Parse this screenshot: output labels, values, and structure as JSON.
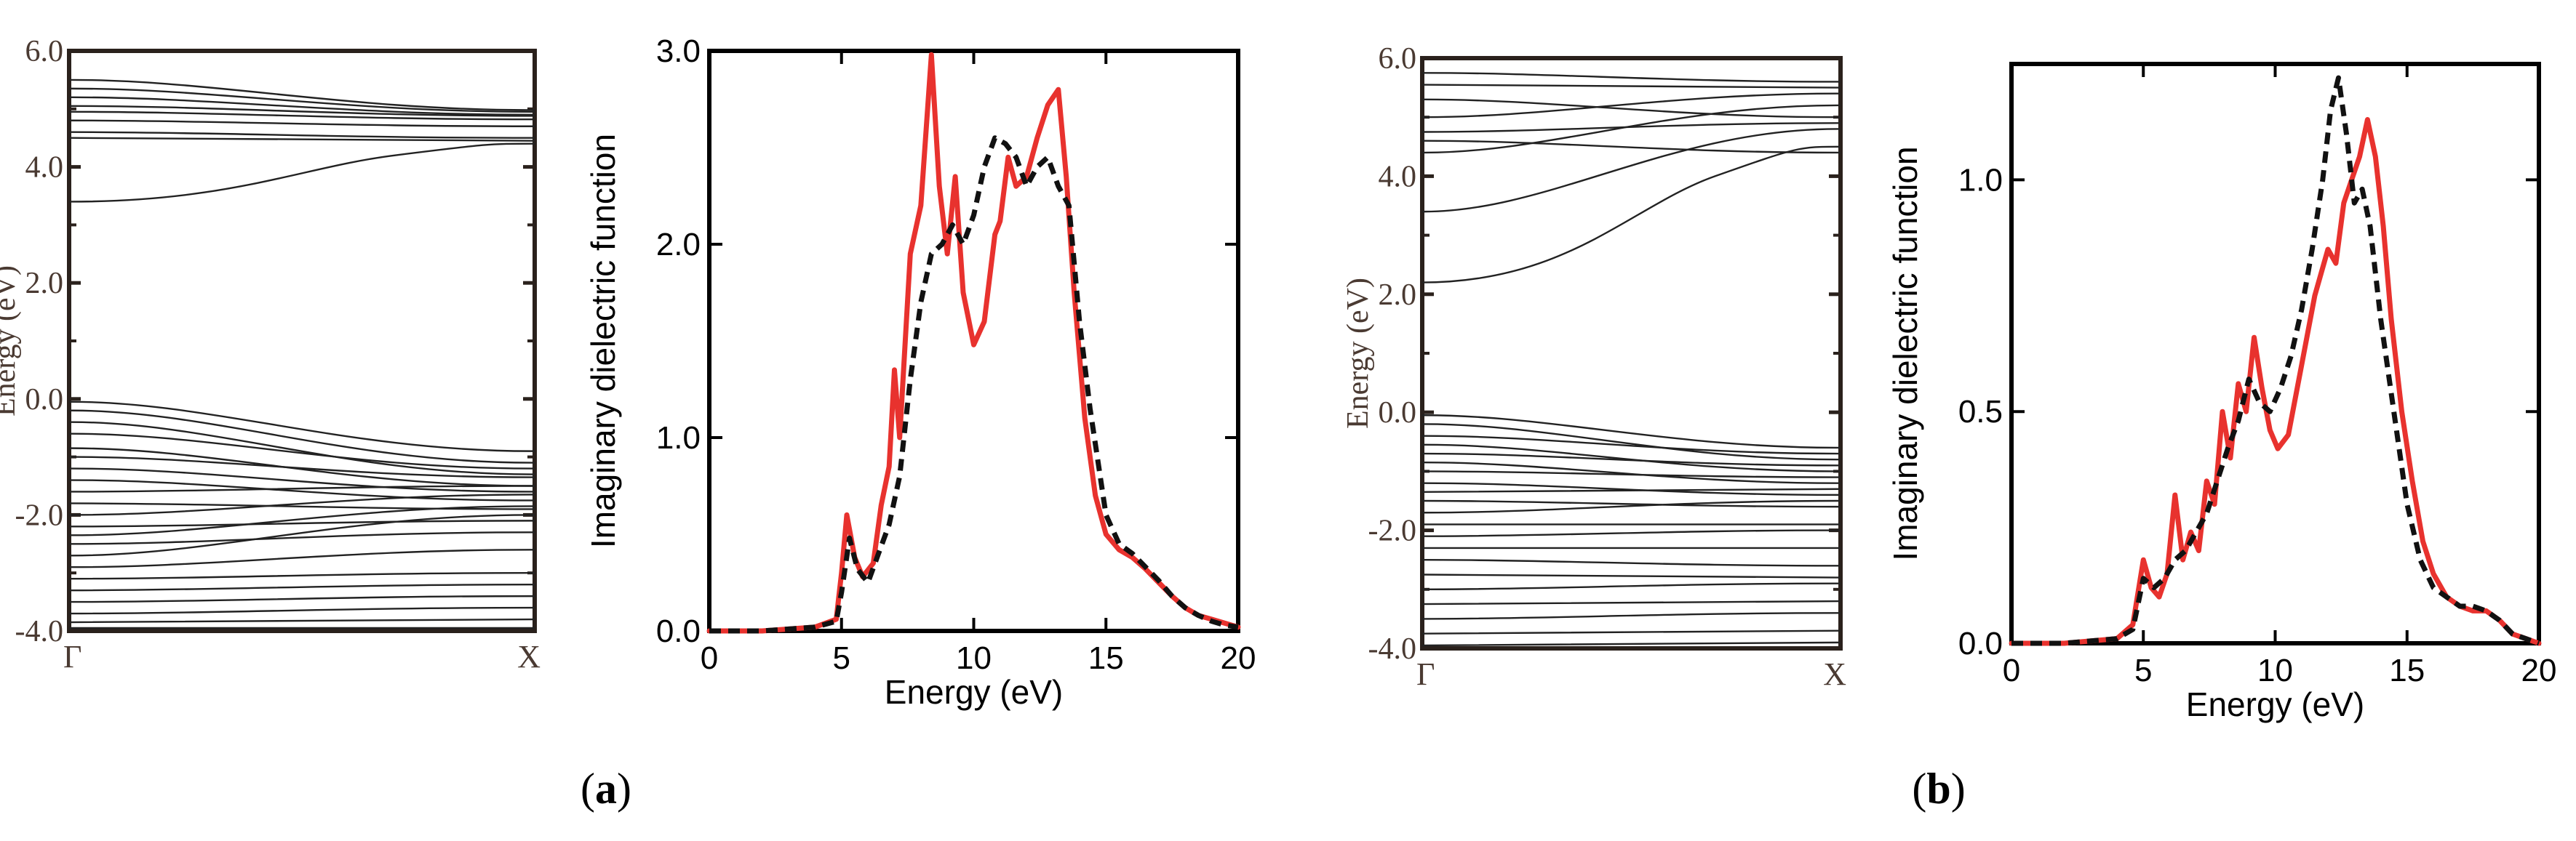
{
  "figure": {
    "panels": [
      {
        "label": "a"
      },
      {
        "label": "b"
      }
    ],
    "colors": {
      "red_series": "#e8322e",
      "black_series": "#111111",
      "band_lines": "#222222",
      "band_text": "#4a3a32"
    }
  },
  "chart_data": [
    {
      "id": "band_a",
      "type": "line",
      "title": "",
      "xlabel": "",
      "ylabel": "Energy (eV)",
      "ylim": [
        -4.0,
        6.0
      ],
      "yticks": [
        -4.0,
        -2.0,
        0.0,
        2.0,
        4.0,
        6.0
      ],
      "ytick_labels": [
        "-4.0",
        "-2.0",
        "0.0",
        "2.0",
        "4.0",
        "6.0"
      ],
      "kpoints": [
        "Γ",
        "X"
      ],
      "conduction_bands": [
        {
          "gamma": 3.4,
          "x": 4.4,
          "mid": 4.0
        },
        {
          "gamma": 4.5,
          "x": 4.45
        },
        {
          "gamma": 4.6,
          "x": 4.5
        },
        {
          "gamma": 4.8,
          "x": 4.7
        },
        {
          "gamma": 4.95,
          "x": 4.82
        },
        {
          "gamma": 5.05,
          "x": 4.88
        },
        {
          "gamma": 5.2,
          "x": 4.9
        },
        {
          "gamma": 5.35,
          "x": 4.95
        },
        {
          "gamma": 5.5,
          "x": 4.98
        }
      ],
      "valence_bands": [
        {
          "gamma": -0.05,
          "x": -0.9
        },
        {
          "gamma": -0.2,
          "x": -1.1
        },
        {
          "gamma": -0.4,
          "x": -1.3
        },
        {
          "gamma": -0.6,
          "x": -1.2
        },
        {
          "gamma": -0.85,
          "x": -1.5
        },
        {
          "gamma": -1.0,
          "x": -1.35
        },
        {
          "gamma": -1.2,
          "x": -1.6
        },
        {
          "gamma": -1.4,
          "x": -1.75
        },
        {
          "gamma": -1.6,
          "x": -1.5
        },
        {
          "gamma": -1.8,
          "x": -1.9
        },
        {
          "gamma": -2.0,
          "x": -1.65
        },
        {
          "gamma": -2.2,
          "x": -2.1
        },
        {
          "gamma": -2.35,
          "x": -1.85
        },
        {
          "gamma": -2.5,
          "x": -2.3
        },
        {
          "gamma": -2.7,
          "x": -2.0
        },
        {
          "gamma": -2.9,
          "x": -2.6
        },
        {
          "gamma": -3.1,
          "x": -3.0
        },
        {
          "gamma": -3.3,
          "x": -3.2
        },
        {
          "gamma": -3.5,
          "x": -3.4
        },
        {
          "gamma": -3.7,
          "x": -3.6
        },
        {
          "gamma": -3.85,
          "x": -3.8
        },
        {
          "gamma": -3.95,
          "x": -3.95
        }
      ]
    },
    {
      "id": "eps_a",
      "type": "line",
      "title": "",
      "xlabel": "Energy (eV)",
      "ylabel": "Imaginary dielectric function",
      "xlim": [
        0,
        20
      ],
      "ylim": [
        0,
        3.0
      ],
      "xticks": [
        0,
        5,
        10,
        15,
        20
      ],
      "yticks": [
        0.0,
        1.0,
        2.0,
        3.0
      ],
      "ytick_labels": [
        "0.0",
        "1.0",
        "2.0",
        "3.0"
      ],
      "series": [
        {
          "name": "red",
          "color": "#e8322e",
          "dash": "solid",
          "x": [
            0,
            2,
            4,
            4.8,
            5.0,
            5.2,
            5.5,
            5.8,
            6.2,
            6.5,
            6.8,
            7.0,
            7.2,
            7.6,
            8.0,
            8.4,
            8.7,
            9.0,
            9.3,
            9.6,
            10.0,
            10.4,
            10.8,
            11.0,
            11.3,
            11.6,
            12.0,
            12.4,
            12.8,
            13.2,
            13.5,
            13.8,
            14.2,
            14.6,
            15.0,
            15.5,
            16.0,
            16.5,
            17.0,
            17.5,
            18.0,
            18.5,
            19.0,
            19.5,
            20.0
          ],
          "values": [
            0,
            0,
            0.02,
            0.06,
            0.3,
            0.6,
            0.38,
            0.28,
            0.35,
            0.65,
            0.85,
            1.35,
            1.0,
            1.95,
            2.2,
            2.98,
            2.3,
            1.95,
            2.35,
            1.75,
            1.48,
            1.6,
            2.05,
            2.12,
            2.45,
            2.3,
            2.35,
            2.55,
            2.72,
            2.8,
            2.35,
            1.75,
            1.1,
            0.7,
            0.5,
            0.42,
            0.38,
            0.32,
            0.25,
            0.18,
            0.12,
            0.08,
            0.06,
            0.04,
            0.02
          ]
        },
        {
          "name": "black",
          "color": "#111111",
          "dash": "dashed",
          "x": [
            0,
            2,
            4,
            4.8,
            5.0,
            5.3,
            5.6,
            6.0,
            6.4,
            6.8,
            7.2,
            7.6,
            8.0,
            8.4,
            8.8,
            9.2,
            9.6,
            10.0,
            10.4,
            10.8,
            11.2,
            11.6,
            12.0,
            12.4,
            12.8,
            13.2,
            13.6,
            14.0,
            14.4,
            15.0,
            15.5,
            16.0,
            16.5,
            17.0,
            17.5,
            18.0,
            18.5,
            19.0,
            19.5,
            20.0
          ],
          "values": [
            0,
            0,
            0.02,
            0.05,
            0.2,
            0.48,
            0.32,
            0.25,
            0.4,
            0.55,
            0.8,
            1.3,
            1.7,
            1.95,
            2.0,
            2.1,
            2.0,
            2.15,
            2.4,
            2.55,
            2.52,
            2.45,
            2.3,
            2.4,
            2.45,
            2.3,
            2.2,
            1.6,
            1.15,
            0.6,
            0.45,
            0.4,
            0.33,
            0.26,
            0.18,
            0.12,
            0.08,
            0.05,
            0.03,
            0.02
          ]
        }
      ]
    },
    {
      "id": "band_b",
      "type": "line",
      "title": "",
      "xlabel": "",
      "ylabel": "Energy (eV)",
      "ylim": [
        -4.0,
        6.0
      ],
      "yticks": [
        -4.0,
        -2.0,
        0.0,
        2.0,
        4.0,
        6.0
      ],
      "ytick_labels": [
        "-4.0",
        "-2.0",
        "0.0",
        "2.0",
        "4.0",
        "6.0"
      ],
      "kpoints": [
        "Γ",
        "X"
      ],
      "conduction_bands": [
        {
          "gamma": 2.2,
          "x": 4.5,
          "mid": 3.5
        },
        {
          "gamma": 3.4,
          "x": 4.8
        },
        {
          "gamma": 4.4,
          "x": 5.2
        },
        {
          "gamma": 4.6,
          "x": 4.4
        },
        {
          "gamma": 4.75,
          "x": 4.9
        },
        {
          "gamma": 5.0,
          "x": 5.4
        },
        {
          "gamma": 5.3,
          "x": 5.0
        },
        {
          "gamma": 5.55,
          "x": 5.5
        },
        {
          "gamma": 5.75,
          "x": 5.6
        }
      ],
      "valence_bands": [
        {
          "gamma": -0.05,
          "x": -0.6
        },
        {
          "gamma": -0.2,
          "x": -0.8
        },
        {
          "gamma": -0.4,
          "x": -0.7
        },
        {
          "gamma": -0.55,
          "x": -1.0
        },
        {
          "gamma": -0.7,
          "x": -0.9
        },
        {
          "gamma": -0.85,
          "x": -1.2
        },
        {
          "gamma": -1.0,
          "x": -1.1
        },
        {
          "gamma": -1.2,
          "x": -1.4
        },
        {
          "gamma": -1.35,
          "x": -1.3
        },
        {
          "gamma": -1.5,
          "x": -1.6
        },
        {
          "gamma": -1.7,
          "x": -1.5
        },
        {
          "gamma": -1.9,
          "x": -1.9
        },
        {
          "gamma": -2.1,
          "x": -2.0
        },
        {
          "gamma": -2.3,
          "x": -2.3
        },
        {
          "gamma": -2.5,
          "x": -2.6
        },
        {
          "gamma": -2.75,
          "x": -2.8
        },
        {
          "gamma": -3.0,
          "x": -2.9
        },
        {
          "gamma": -3.25,
          "x": -3.2
        },
        {
          "gamma": -3.5,
          "x": -3.4
        },
        {
          "gamma": -3.75,
          "x": -3.7
        },
        {
          "gamma": -3.95,
          "x": -3.9
        }
      ]
    },
    {
      "id": "eps_b",
      "type": "line",
      "title": "",
      "xlabel": "Energy (eV)",
      "ylabel": "Imaginary dielectric function",
      "xlim": [
        0,
        20
      ],
      "ylim": [
        0,
        1.25
      ],
      "xticks": [
        0,
        5,
        10,
        15,
        20
      ],
      "yticks": [
        0.0,
        0.5,
        1.0
      ],
      "ytick_labels": [
        "0.0",
        "0.5",
        "1.0"
      ],
      "series": [
        {
          "name": "red",
          "color": "#e8322e",
          "dash": "solid",
          "x": [
            0,
            2,
            4,
            4.6,
            5.0,
            5.3,
            5.6,
            5.9,
            6.2,
            6.5,
            6.8,
            7.1,
            7.4,
            7.7,
            8.0,
            8.3,
            8.6,
            8.9,
            9.2,
            9.5,
            9.8,
            10.1,
            10.5,
            11.0,
            11.5,
            12.0,
            12.3,
            12.6,
            12.9,
            13.2,
            13.5,
            13.8,
            14.1,
            14.4,
            14.8,
            15.2,
            15.6,
            16.0,
            16.5,
            17.0,
            17.5,
            18.0,
            18.5,
            19.0,
            19.5,
            20.0
          ],
          "values": [
            0,
            0,
            0.01,
            0.04,
            0.18,
            0.12,
            0.1,
            0.15,
            0.32,
            0.18,
            0.24,
            0.2,
            0.35,
            0.3,
            0.5,
            0.4,
            0.56,
            0.5,
            0.66,
            0.55,
            0.46,
            0.42,
            0.45,
            0.6,
            0.75,
            0.85,
            0.82,
            0.95,
            1.0,
            1.05,
            1.13,
            1.05,
            0.9,
            0.7,
            0.5,
            0.35,
            0.22,
            0.15,
            0.1,
            0.08,
            0.07,
            0.07,
            0.05,
            0.02,
            0.01,
            0.0
          ]
        },
        {
          "name": "black",
          "color": "#111111",
          "dash": "dashed",
          "x": [
            0,
            2,
            4,
            4.6,
            5.0,
            5.4,
            5.8,
            6.2,
            6.6,
            7.0,
            7.4,
            7.8,
            8.2,
            8.6,
            9.0,
            9.4,
            9.8,
            10.2,
            10.6,
            11.0,
            11.4,
            11.8,
            12.1,
            12.4,
            12.7,
            13.0,
            13.3,
            13.6,
            14.0,
            14.5,
            15.0,
            15.5,
            16.0,
            16.5,
            17.0,
            17.5,
            18.0,
            18.5,
            19.0,
            19.5,
            20.0
          ],
          "values": [
            0,
            0,
            0.01,
            0.03,
            0.14,
            0.12,
            0.14,
            0.18,
            0.2,
            0.24,
            0.28,
            0.35,
            0.42,
            0.48,
            0.57,
            0.52,
            0.5,
            0.55,
            0.62,
            0.72,
            0.85,
            1.0,
            1.15,
            1.22,
            1.1,
            0.95,
            0.98,
            0.9,
            0.7,
            0.5,
            0.3,
            0.18,
            0.12,
            0.1,
            0.08,
            0.08,
            0.07,
            0.05,
            0.02,
            0.01,
            0.0
          ]
        }
      ]
    }
  ]
}
